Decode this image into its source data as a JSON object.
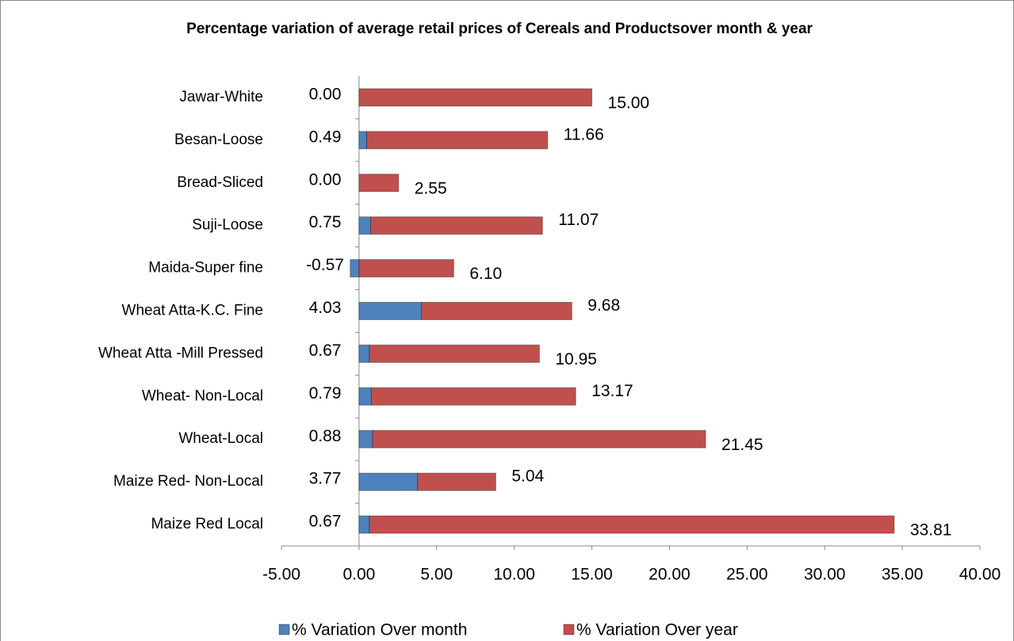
{
  "chart_data": {
    "type": "stacked_barh",
    "title": "Percentage variation of average retail prices of Cereals and Productsover month & year",
    "categories": [
      "Maize Red Local",
      "Maize Red- Non-Local",
      "Wheat-Local",
      "Wheat- Non-Local",
      "Wheat Atta -Mill Pressed",
      "Wheat Atta-K.C. Fine",
      "Maida-Super fine",
      "Suji-Loose",
      "Bread-Sliced",
      "Besan-Loose",
      "Jawar-White"
    ],
    "series": [
      {
        "name": "% Variation Over month",
        "color": "#4f81bd",
        "values": [
          0.67,
          3.77,
          0.88,
          0.79,
          0.67,
          4.03,
          -0.57,
          0.75,
          0,
          0.49,
          0
        ],
        "value_labels": [
          "0.67",
          "3.77",
          "0.88",
          "0.79",
          "0.67",
          "4.03",
          "-0.57",
          "0.75",
          "0.00",
          "0.49",
          "0.00"
        ]
      },
      {
        "name": "% Variation Over year",
        "color": "#c0504d",
        "values": [
          33.81,
          5.04,
          21.45,
          13.17,
          10.95,
          9.68,
          6.1,
          11.07,
          2.55,
          11.66,
          15
        ],
        "value_labels": [
          "33.81",
          "5.04",
          "21.45",
          "13.17",
          "10.95",
          "9.68",
          "6.10",
          "11.07",
          "2.55",
          "11.66",
          "15.00"
        ]
      }
    ],
    "xlim": [
      -5,
      40
    ],
    "xticks": [
      {
        "value": -5,
        "label": "-5.00"
      },
      {
        "value": 0,
        "label": "0.00"
      },
      {
        "value": 5,
        "label": "5.00"
      },
      {
        "value": 10,
        "label": "10.00"
      },
      {
        "value": 15,
        "label": "15.00"
      },
      {
        "value": 20,
        "label": "20.00"
      },
      {
        "value": 25,
        "label": "25.00"
      },
      {
        "value": 30,
        "label": "30.00"
      },
      {
        "value": 35,
        "label": "35.00"
      },
      {
        "value": 40,
        "label": "40.00"
      }
    ],
    "grid": false,
    "legend": "bottom"
  }
}
